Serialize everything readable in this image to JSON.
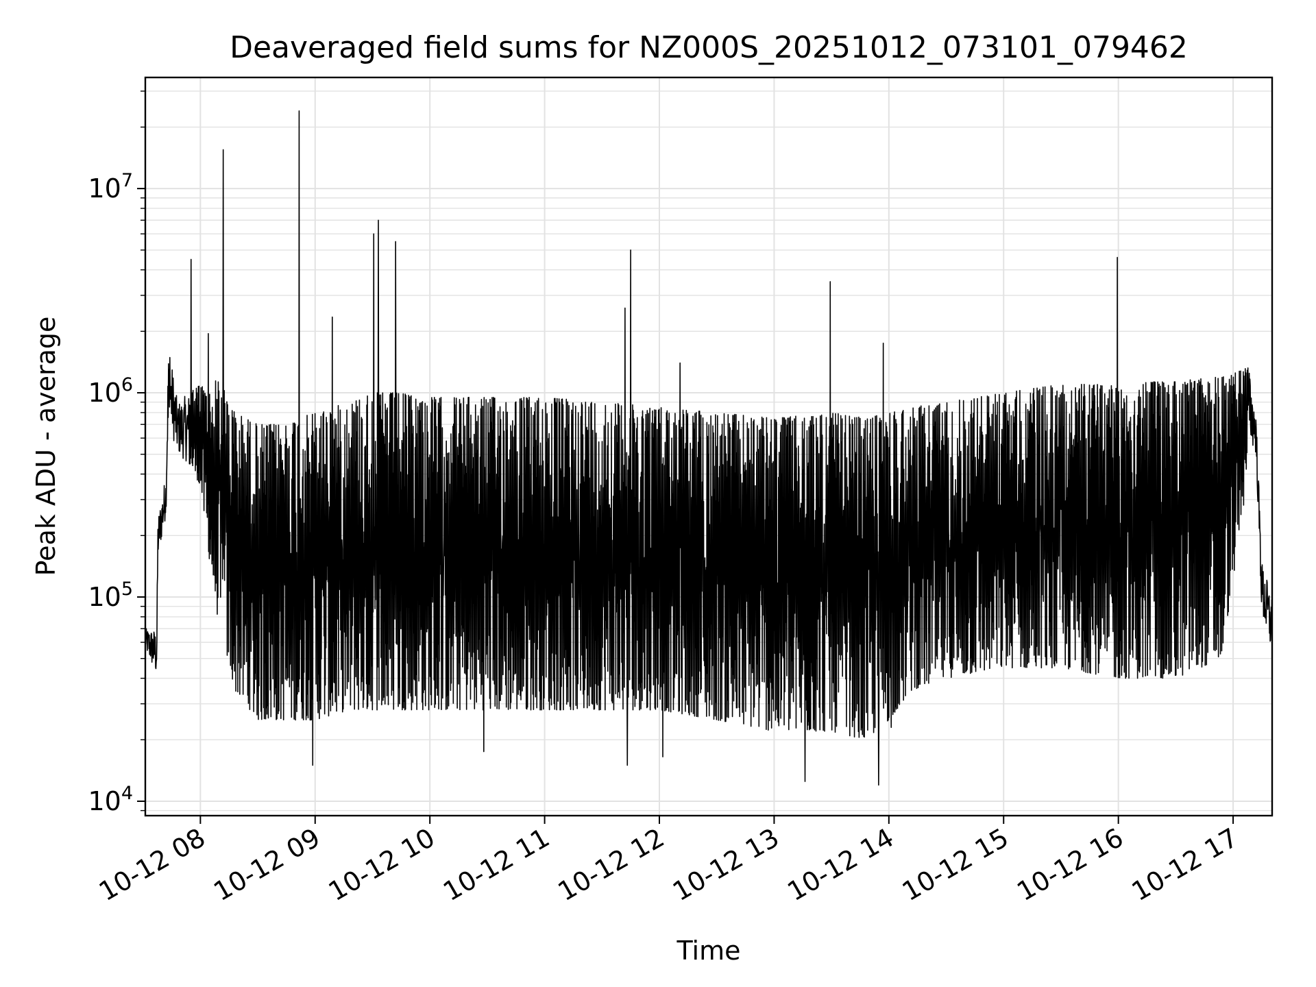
{
  "chart_data": {
    "type": "line",
    "title": "Deaveraged field sums for NZ000S_20251012_073101_079462",
    "xlabel": "Time",
    "ylabel": "Peak ADU - average",
    "yscale": "log",
    "ylim": [
      8500,
      35000000
    ],
    "xlim_hours": [
      7.52,
      17.34
    ],
    "grid": true,
    "line_color": "#000000",
    "x_ticks": [
      {
        "hour": 8,
        "label": "10-12 08"
      },
      {
        "hour": 9,
        "label": "10-12 09"
      },
      {
        "hour": 10,
        "label": "10-12 10"
      },
      {
        "hour": 11,
        "label": "10-12 11"
      },
      {
        "hour": 12,
        "label": "10-12 12"
      },
      {
        "hour": 13,
        "label": "10-12 13"
      },
      {
        "hour": 14,
        "label": "10-12 14"
      },
      {
        "hour": 15,
        "label": "10-12 15"
      },
      {
        "hour": 16,
        "label": "10-12 16"
      },
      {
        "hour": 17,
        "label": "10-12 17"
      }
    ],
    "y_ticks": [
      {
        "value": 10000,
        "base": "10",
        "exp": "4"
      },
      {
        "value": 100000,
        "base": "10",
        "exp": "5"
      },
      {
        "value": 1000000,
        "base": "10",
        "exp": "6"
      },
      {
        "value": 10000000,
        "base": "10",
        "exp": "7"
      }
    ],
    "series": [
      {
        "name": "Peak ADU - average",
        "keypoints_hour": [
          7.52,
          7.62,
          7.63,
          7.7,
          7.72,
          7.76,
          7.8,
          7.9,
          8.0,
          8.08,
          8.15,
          8.3,
          8.5,
          8.7,
          9.0,
          9.3,
          9.5,
          9.7,
          10.0,
          10.5,
          11.0,
          11.5,
          12.0,
          12.5,
          13.0,
          13.5,
          13.8,
          14.0,
          14.2,
          14.5,
          15.0,
          15.5,
          16.0,
          16.5,
          16.9,
          17.1,
          17.13,
          17.2,
          17.25,
          17.34
        ],
        "upper_profile": [
          70000,
          70000,
          250000,
          400000,
          1600000,
          1300000,
          900000,
          1000000,
          1100000,
          1000000,
          1200000,
          800000,
          700000,
          700000,
          800000,
          900000,
          1000000,
          1000000,
          950000,
          950000,
          950000,
          900000,
          850000,
          800000,
          750000,
          800000,
          750000,
          800000,
          850000,
          900000,
          1000000,
          1100000,
          1100000,
          1150000,
          1200000,
          1300000,
          1400000,
          800000,
          150000,
          100000
        ],
        "lower_profile": [
          55000,
          40000,
          150000,
          250000,
          700000,
          600000,
          500000,
          450000,
          350000,
          150000,
          80000,
          35000,
          25000,
          25000,
          25000,
          28000,
          28000,
          28000,
          28000,
          28000,
          28000,
          28000,
          28000,
          25000,
          22000,
          22000,
          20000,
          25000,
          35000,
          40000,
          45000,
          45000,
          40000,
          40000,
          50000,
          300000,
          600000,
          500000,
          80000,
          50000
        ]
      }
    ],
    "spikes": [
      {
        "hour": 7.92,
        "value": 4500000
      },
      {
        "hour": 8.2,
        "value": 15500000
      },
      {
        "hour": 8.07,
        "value": 1950000
      },
      {
        "hour": 8.86,
        "value": 24000000
      },
      {
        "hour": 9.15,
        "value": 2350000
      },
      {
        "hour": 9.51,
        "value": 6000000
      },
      {
        "hour": 9.55,
        "value": 7000000
      },
      {
        "hour": 9.7,
        "value": 5500000
      },
      {
        "hour": 11.7,
        "value": 2600000
      },
      {
        "hour": 11.75,
        "value": 5000000
      },
      {
        "hour": 12.18,
        "value": 1400000
      },
      {
        "hour": 13.49,
        "value": 3500000
      },
      {
        "hour": 13.95,
        "value": 1750000
      },
      {
        "hour": 15.99,
        "value": 4600000
      }
    ],
    "dips": [
      {
        "hour": 8.98,
        "value": 15000
      },
      {
        "hour": 10.47,
        "value": 17500
      },
      {
        "hour": 11.72,
        "value": 15000
      },
      {
        "hour": 12.03,
        "value": 16500
      },
      {
        "hour": 13.27,
        "value": 12500
      },
      {
        "hour": 13.91,
        "value": 12000
      },
      {
        "hour": 14.02,
        "value": 23000
      }
    ]
  }
}
